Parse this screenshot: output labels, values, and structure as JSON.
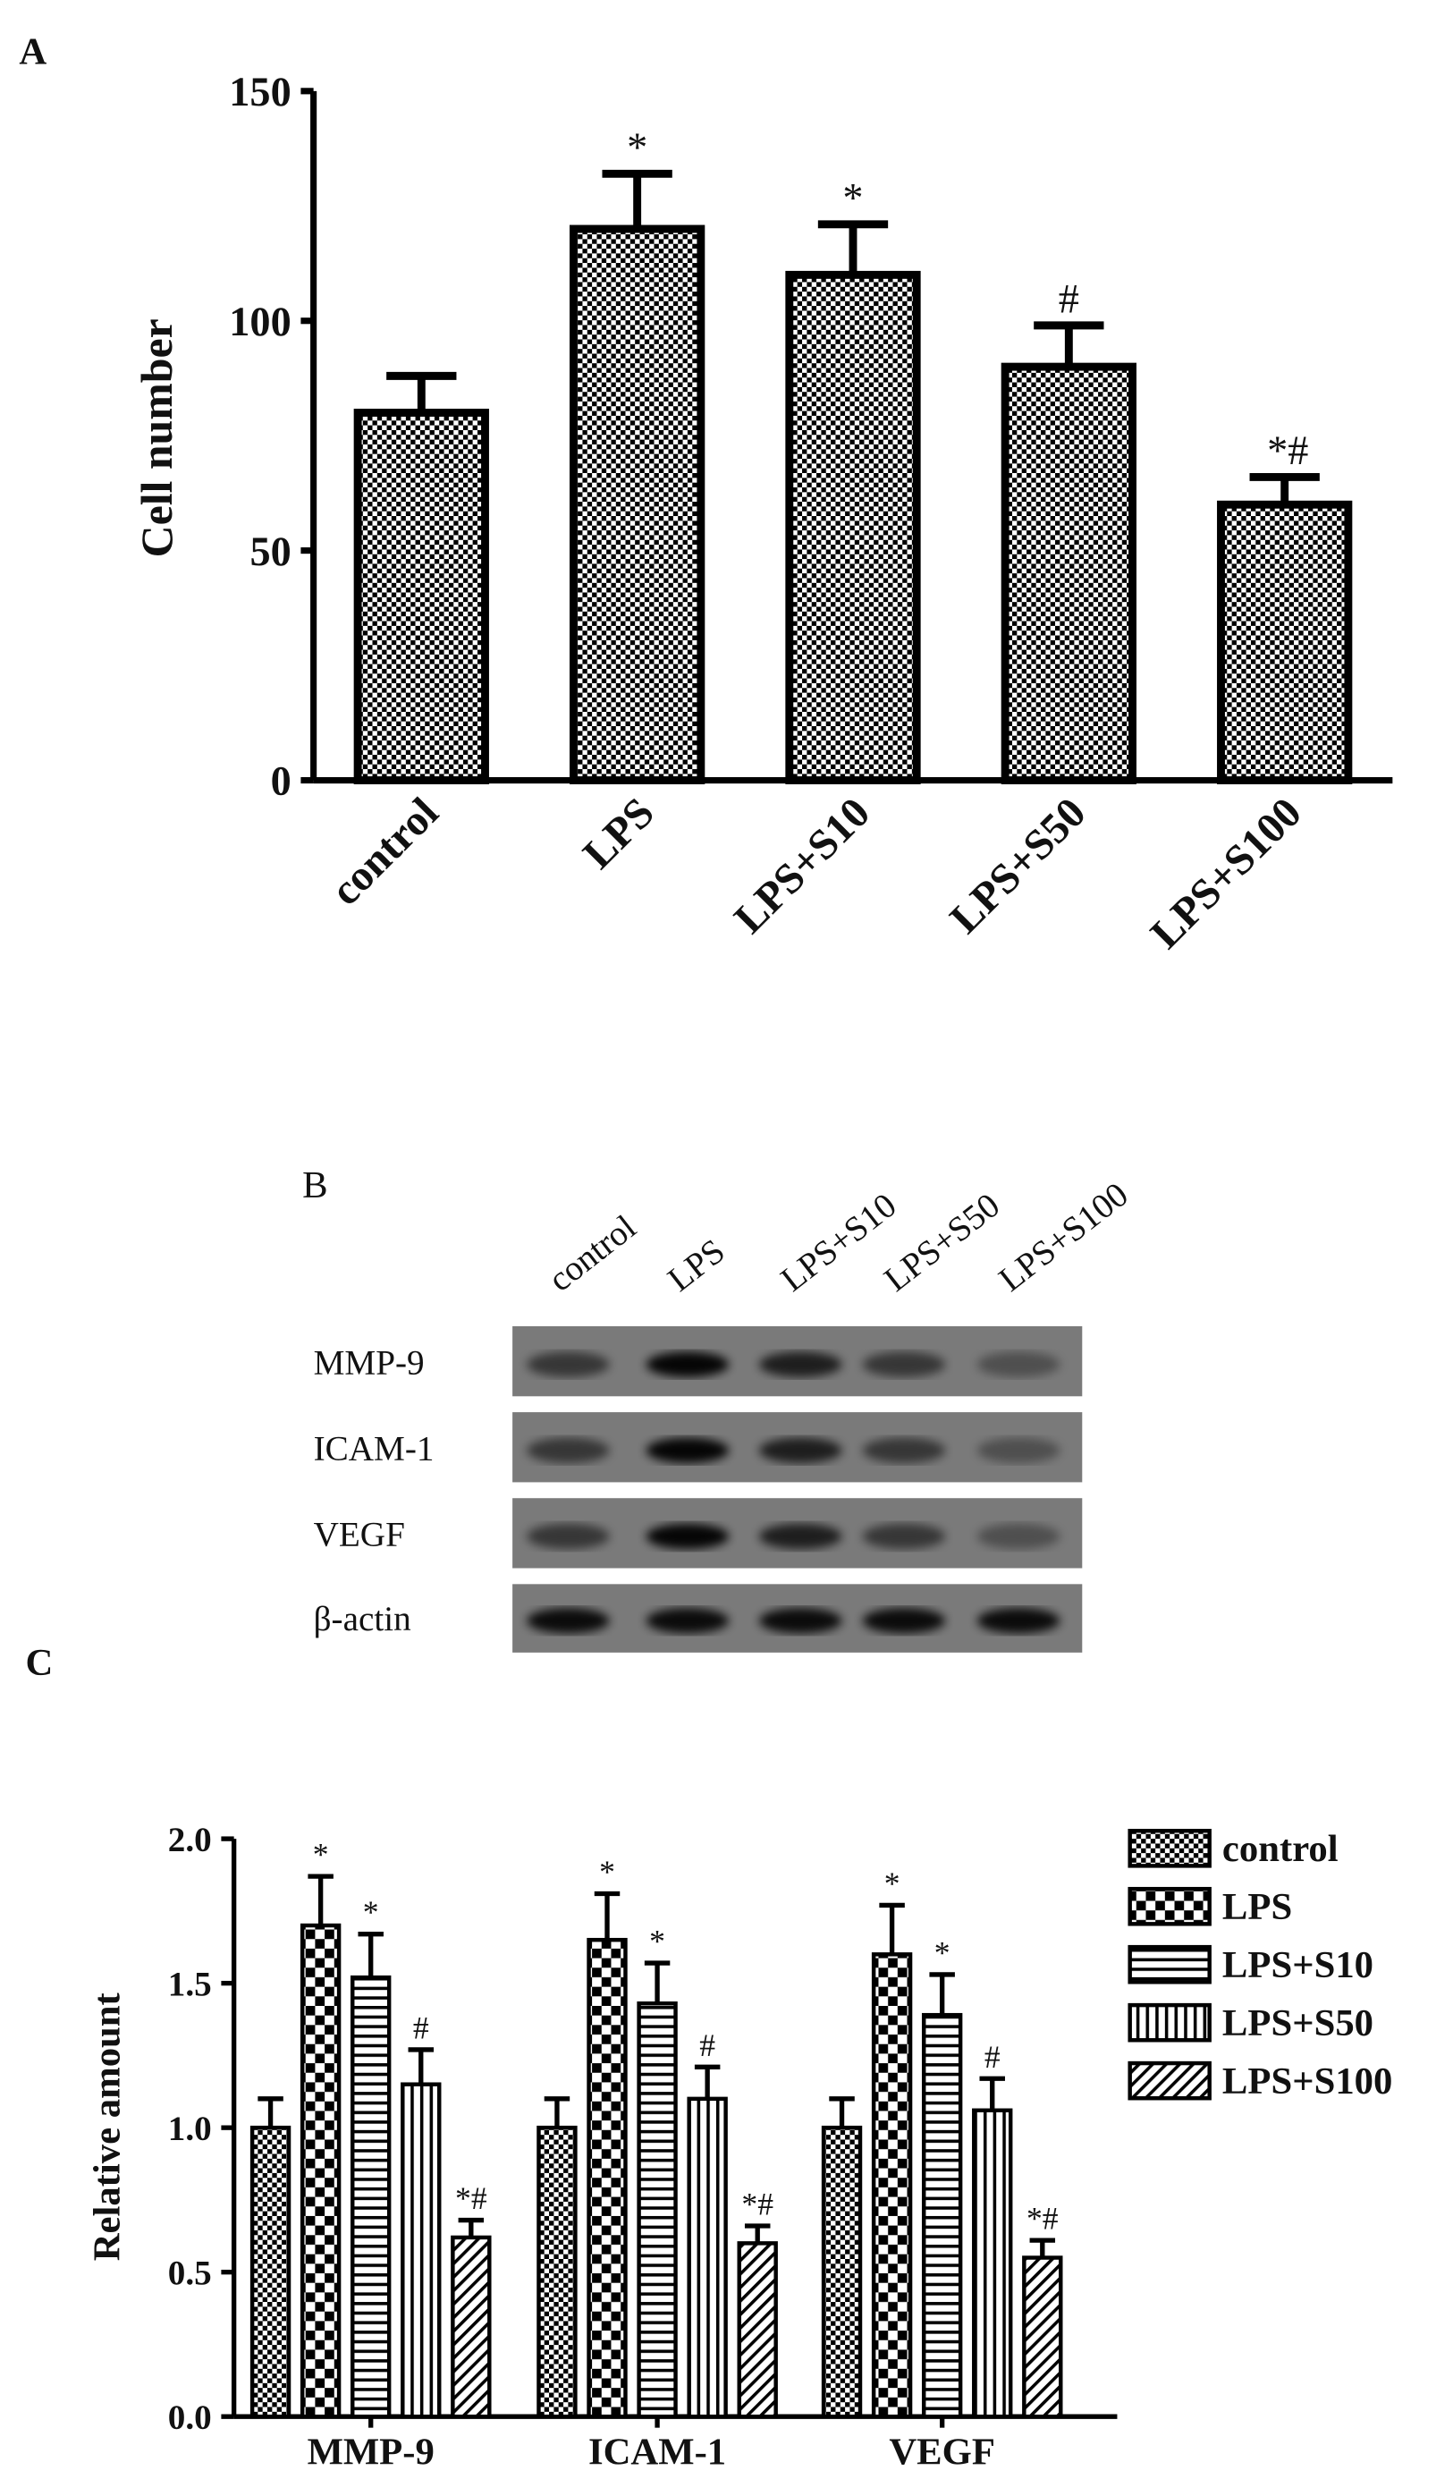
{
  "chart_data": [
    {
      "type": "bar",
      "panel": "A",
      "ylabel": "Cell number",
      "categories": [
        "control",
        "LPS",
        "LPS+S10",
        "LPS+S50",
        "LPS+S100"
      ],
      "values": [
        80,
        120,
        110,
        90,
        60
      ],
      "errors": [
        8,
        12,
        11,
        9,
        6
      ],
      "annotations": [
        null,
        "*",
        "*",
        "#",
        "*#"
      ],
      "pattern": "checker-fine",
      "color": "#000000",
      "ylim": [
        0,
        150
      ],
      "yticks": [
        0,
        50,
        100,
        150
      ]
    },
    {
      "type": "grouped-bar",
      "panel": "C",
      "ylabel": "Relative amount",
      "categories": [
        "MMP-9",
        "ICAM-1",
        "VEGF"
      ],
      "series": [
        {
          "name": "control",
          "color": "#000000",
          "pattern": "checker-fine",
          "values": [
            1.0,
            1.0,
            1.0
          ],
          "errors": [
            0.1,
            0.1,
            0.1
          ],
          "annotation": null
        },
        {
          "name": "LPS",
          "color": "#000000",
          "pattern": "checker-coarse",
          "values": [
            1.7,
            1.65,
            1.6
          ],
          "errors": [
            0.17,
            0.16,
            0.17
          ],
          "annotation": "*"
        },
        {
          "name": "LPS+S10",
          "color": "#000000",
          "pattern": "horizontal",
          "values": [
            1.52,
            1.43,
            1.39
          ],
          "errors": [
            0.15,
            0.14,
            0.14
          ],
          "annotation": "*"
        },
        {
          "name": "LPS+S50",
          "color": "#000000",
          "pattern": "vertical",
          "values": [
            1.15,
            1.1,
            1.06
          ],
          "errors": [
            0.12,
            0.11,
            0.11
          ],
          "annotation": "#"
        },
        {
          "name": "LPS+S100",
          "color": "#000000",
          "pattern": "diagonal",
          "values": [
            0.62,
            0.6,
            0.55
          ],
          "errors": [
            0.06,
            0.06,
            0.06
          ],
          "annotation": "*#"
        }
      ],
      "ylim": [
        0,
        2
      ],
      "yticks": [
        {
          "value": 0,
          "label": "0.0"
        },
        {
          "value": 0.5,
          "label": "0.5"
        },
        {
          "value": 1,
          "label": "1.0"
        },
        {
          "value": 1.5,
          "label": "1.5"
        },
        {
          "value": 2,
          "label": "2.0"
        }
      ],
      "legend": "right"
    }
  ],
  "blot": {
    "panel": "B",
    "columns": [
      "control",
      "LPS",
      "LPS+S10",
      "LPS+S50",
      "LPS+S100"
    ],
    "rows": [
      "MMP-9",
      "ICAM-1",
      "VEGF",
      "β-actin"
    ]
  }
}
